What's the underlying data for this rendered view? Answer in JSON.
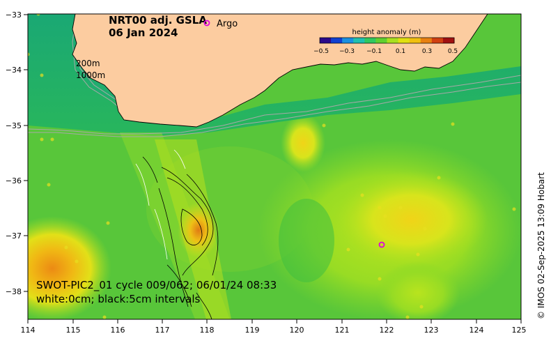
{
  "title": {
    "line1": "NRT00 adj. GSLA",
    "line2": "06 Jan 2024"
  },
  "legend": {
    "marker": "o",
    "label": "Argo",
    "marker_color": "#e000e0"
  },
  "depth_contours": {
    "label1": "200m",
    "label2": "1000m"
  },
  "colorbar": {
    "title": "height anomaly (m)",
    "ticks": [
      "−0.5",
      "−0.3",
      "−0.1",
      "0.1",
      "0.3",
      "0.5"
    ],
    "colors": [
      "#2a0a8a",
      "#1040d0",
      "#1a90e0",
      "#20c0b0",
      "#30c860",
      "#60d030",
      "#a8e020",
      "#e0e010",
      "#f0c010",
      "#e88010",
      "#d04010",
      "#a01010"
    ]
  },
  "swot_note": {
    "line1": "SWOT-PIC2_01 cycle 009/062; 06/01/24 08:33",
    "line2": "white:0cm; black:5cm intervals"
  },
  "credit": "© IMOS 02-Sep-2025 13:09 Hobart",
  "axes": {
    "x_ticks": [
      "114",
      "115",
      "116",
      "117",
      "118",
      "119",
      "120",
      "121",
      "122",
      "123",
      "124",
      "125"
    ],
    "y_ticks": [
      "−33",
      "−34",
      "−35",
      "−36",
      "−37",
      "−38"
    ]
  },
  "colors": {
    "land": "#fccca0",
    "sea_base": "#5cc83c",
    "shelf": "#1fb26a",
    "depth_line": "#a8a8a8"
  }
}
